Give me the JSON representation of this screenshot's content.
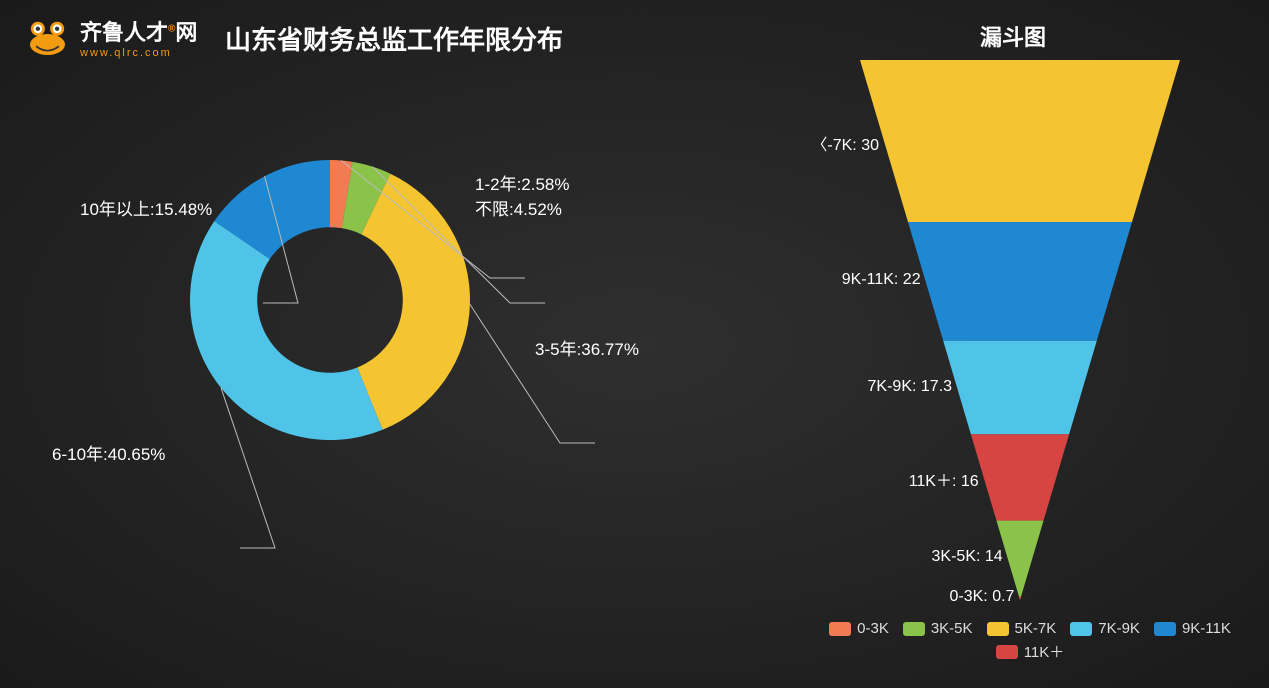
{
  "brand": {
    "site_name_1": "齐鲁人才",
    "site_name_2": "网",
    "reg_mark": "®",
    "url": "www.qlrc.com",
    "frog_body": "#f39c12",
    "frog_eye_outer": "#ffffff",
    "frog_eye_inner": "#333333"
  },
  "titles": {
    "main": "山东省财务总监工作年限分布",
    "funnel": "漏斗图"
  },
  "background": {
    "inner": "#2f2f2f",
    "outer": "#1a1a1a"
  },
  "donut": {
    "type": "donut",
    "inner_radius_ratio": 0.52,
    "start_angle_deg": -90,
    "label_fontsize": 17,
    "label_color": "#ffffff",
    "slices": [
      {
        "label": "1-2年",
        "value": 2.58,
        "color": "#f27b53",
        "display": "1-2年:2.58%"
      },
      {
        "label": "不限",
        "value": 4.52,
        "color": "#8bc34a",
        "display": "不限:4.52%"
      },
      {
        "label": "3-5年",
        "value": 36.77,
        "color": "#f4c431",
        "display": "3-5年:36.77%"
      },
      {
        "label": "6-10年",
        "value": 40.65,
        "color": "#4fc3e8",
        "display": "6-10年:40.65%"
      },
      {
        "label": "10年以上",
        "value": 15.48,
        "color": "#1e88d2",
        "display": "10年以上:15.48%"
      }
    ]
  },
  "funnel": {
    "type": "funnel",
    "stages": [
      {
        "label": "5K-7K",
        "value": 30,
        "color": "#f4c431",
        "display": " 〈-7K: 30"
      },
      {
        "label": "9K-11K",
        "value": 22,
        "color": "#1e88d2",
        "display": "9K-11K: 22"
      },
      {
        "label": "7K-9K",
        "value": 17.3,
        "color": "#4fc3e8",
        "display": "7K-9K: 17.3"
      },
      {
        "label": "11K+",
        "value": 16,
        "color": "#d64541",
        "display": "11K＋: 16"
      },
      {
        "label": "3K-5K",
        "value": 14,
        "color": "#8bc34a",
        "display": "3K-5K: 14"
      },
      {
        "label": "0-3K",
        "value": 0.7,
        "color": "#f27b53",
        "display": "0-3K: 0.7"
      }
    ],
    "top_width": 320,
    "total_height": 540,
    "label_fontsize": 16,
    "label_color": "#ffffff"
  },
  "legend": {
    "items": [
      {
        "label": "0-3K",
        "color": "#f27b53"
      },
      {
        "label": "3K-5K",
        "color": "#8bc34a"
      },
      {
        "label": "5K-7K",
        "color": "#f4c431"
      },
      {
        "label": "7K-9K",
        "color": "#4fc3e8"
      },
      {
        "label": "9K-11K",
        "color": "#1e88d2"
      },
      {
        "label": "11K＋",
        "color": "#d64541"
      }
    ],
    "fontsize": 15,
    "text_color": "#dddddd"
  }
}
